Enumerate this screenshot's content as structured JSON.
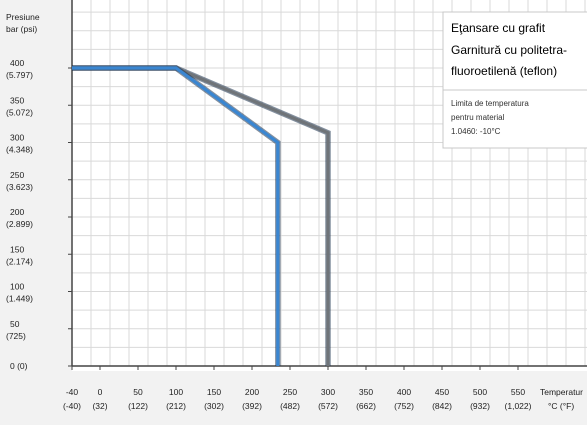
{
  "chart_data": {
    "type": "line",
    "ylabel_lines": [
      "Presiune",
      "bar (psi)"
    ],
    "xlabel_lines": [
      "Temperatur",
      "°C (°F)"
    ],
    "ylim": [
      0,
      430
    ],
    "xlim": [
      -40,
      570
    ],
    "x_ticks": [
      {
        "value": -40,
        "label": "-40",
        "sub": "(-40)"
      },
      {
        "value": 0,
        "label": "0",
        "sub": "(32)"
      },
      {
        "value": 50,
        "label": "50",
        "sub": "(122)"
      },
      {
        "value": 100,
        "label": "100",
        "sub": "(212)"
      },
      {
        "value": 150,
        "label": "150",
        "sub": "(302)"
      },
      {
        "value": 200,
        "label": "200",
        "sub": "(392)"
      },
      {
        "value": 250,
        "label": "250",
        "sub": "(482)"
      },
      {
        "value": 300,
        "label": "300",
        "sub": "(572)"
      },
      {
        "value": 350,
        "label": "350",
        "sub": "(662)"
      },
      {
        "value": 400,
        "label": "400",
        "sub": "(752)"
      },
      {
        "value": 450,
        "label": "450",
        "sub": "(842)"
      },
      {
        "value": 500,
        "label": "500",
        "sub": "(932)"
      },
      {
        "value": 550,
        "label": "550",
        "sub": "(1,022)"
      }
    ],
    "y_ticks": [
      {
        "value": 400,
        "label": "400",
        "sub": "(5.797)"
      },
      {
        "value": 350,
        "label": "350",
        "sub": "(5.072)"
      },
      {
        "value": 300,
        "label": "300",
        "sub": "(4.348)"
      },
      {
        "value": 250,
        "label": "250",
        "sub": "(3.623)"
      },
      {
        "value": 200,
        "label": "200",
        "sub": "(2.899)"
      },
      {
        "value": 150,
        "label": "150",
        "sub": "(2.174)"
      },
      {
        "value": 100,
        "label": "100",
        "sub": "(1.449)"
      },
      {
        "value": 50,
        "label": "50",
        "sub": "(725)"
      },
      {
        "value": 0,
        "label": "0 (0)",
        "sub": ""
      }
    ],
    "series": [
      {
        "name": "Eţansare cu grafit",
        "color": "#6f7479",
        "points": [
          [
            -40,
            400
          ],
          [
            100,
            400
          ],
          [
            300,
            313
          ],
          [
            300,
            0
          ]
        ]
      },
      {
        "name": "Garnitură cu politetra-fluoroetilenă (teflon)",
        "color": "#3a86d1",
        "points": [
          [
            -40,
            400
          ],
          [
            100,
            400
          ],
          [
            234,
            300
          ],
          [
            234,
            0
          ]
        ]
      }
    ],
    "grid": true,
    "legend_position": "top-right"
  },
  "legend": {
    "entries": [
      {
        "text": "Eţansare cu grafit",
        "color": "#6a96c4"
      },
      {
        "text": "Garnitură cu politetra-",
        "color": "#3a86d1"
      },
      {
        "text": "fluoroetilenă (teflon)",
        "color": "#3a86d1"
      }
    ],
    "note_lines": [
      "Limita de temperatura",
      "pentru material",
      "1.0460: -10°C"
    ]
  }
}
